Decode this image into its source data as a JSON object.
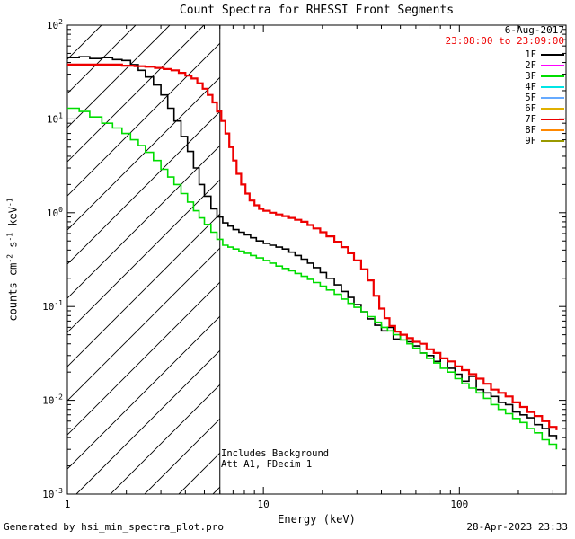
{
  "window": {
    "background": "#ffffff"
  },
  "footer": {
    "left": "Generated by hsi_min_spectra_plot.pro",
    "right": "28-Apr-2023 23:33"
  },
  "chart_data": {
    "type": "line",
    "scale": "log-log",
    "title": "Count Spectra for RHESSI Front Segments",
    "xlabel": "Energy (keV)",
    "ylabel_parts": [
      {
        "text": "counts cm",
        "sup": false
      },
      {
        "text": "-2",
        "sup": true
      },
      {
        "text": " s",
        "sup": false
      },
      {
        "text": "-1",
        "sup": true
      },
      {
        "text": " keV",
        "sup": false
      },
      {
        "text": "-1",
        "sup": true
      }
    ],
    "xlim": [
      1,
      350
    ],
    "ylim": [
      0.001,
      100
    ],
    "x_major_ticks": [
      1,
      10,
      100
    ],
    "x_tick_labels": [
      "1",
      "10",
      "100"
    ],
    "y_tick_exponents": [
      -3,
      -2,
      -1,
      0,
      1,
      2
    ],
    "grid": false,
    "legend_position": "top-right-inside",
    "vertical_line_x": 6,
    "hatch_region": {
      "x_min": 1,
      "x_max": 6
    },
    "header_lines": [
      {
        "text": "6-Aug-2017",
        "color": "#000000"
      },
      {
        "text": "23:08:00 to 23:09:00",
        "color": "#ee0000"
      }
    ],
    "annotations": [
      "Includes Background",
      "Att A1, FDecim 1"
    ],
    "legend": [
      {
        "label": "1F",
        "color": "#000000"
      },
      {
        "label": "2F",
        "color": "#ff00ff"
      },
      {
        "label": "3F",
        "color": "#00dd00"
      },
      {
        "label": "4F",
        "color": "#00e5e5"
      },
      {
        "label": "5F",
        "color": "#66aaff"
      },
      {
        "label": "6F",
        "color": "#e0b000"
      },
      {
        "label": "7F",
        "color": "#ee0000"
      },
      {
        "label": "8F",
        "color": "#ff8800"
      },
      {
        "label": "9F",
        "color": "#999900"
      }
    ],
    "series": [
      {
        "name": "1F",
        "color": "#000000",
        "line_width": 1.6,
        "points": [
          [
            1.0,
            45
          ],
          [
            1.15,
            46
          ],
          [
            1.3,
            44
          ],
          [
            1.5,
            45
          ],
          [
            1.7,
            43
          ],
          [
            1.9,
            42
          ],
          [
            2.1,
            38
          ],
          [
            2.3,
            33
          ],
          [
            2.5,
            28
          ],
          [
            2.75,
            23
          ],
          [
            3.0,
            18
          ],
          [
            3.25,
            13
          ],
          [
            3.5,
            9.5
          ],
          [
            3.8,
            6.5
          ],
          [
            4.1,
            4.5
          ],
          [
            4.4,
            3.0
          ],
          [
            4.7,
            2.0
          ],
          [
            5.0,
            1.5
          ],
          [
            5.4,
            1.1
          ],
          [
            5.8,
            0.9
          ],
          [
            6.2,
            0.78
          ],
          [
            6.6,
            0.72
          ],
          [
            7.0,
            0.66
          ],
          [
            7.5,
            0.62
          ],
          [
            8.0,
            0.58
          ],
          [
            8.6,
            0.54
          ],
          [
            9.2,
            0.5
          ],
          [
            10,
            0.47
          ],
          [
            10.8,
            0.45
          ],
          [
            11.6,
            0.43
          ],
          [
            12.5,
            0.41
          ],
          [
            13.5,
            0.38
          ],
          [
            14.5,
            0.35
          ],
          [
            15.6,
            0.32
          ],
          [
            16.8,
            0.29
          ],
          [
            18,
            0.26
          ],
          [
            19.5,
            0.23
          ],
          [
            21,
            0.2
          ],
          [
            23,
            0.17
          ],
          [
            25,
            0.145
          ],
          [
            27,
            0.125
          ],
          [
            29,
            0.105
          ],
          [
            31.5,
            0.088
          ],
          [
            34,
            0.074
          ],
          [
            37,
            0.063
          ],
          [
            40,
            0.055
          ],
          [
            43,
            0.06
          ],
          [
            46,
            0.045
          ],
          [
            50,
            0.05
          ],
          [
            54,
            0.042
          ],
          [
            58,
            0.038
          ],
          [
            63,
            0.032
          ],
          [
            68,
            0.03
          ],
          [
            74,
            0.026
          ],
          [
            80,
            0.028
          ],
          [
            87,
            0.022
          ],
          [
            95,
            0.019
          ],
          [
            103,
            0.016
          ],
          [
            112,
            0.018
          ],
          [
            122,
            0.013
          ],
          [
            133,
            0.012
          ],
          [
            145,
            0.011
          ],
          [
            158,
            0.0095
          ],
          [
            172,
            0.009
          ],
          [
            187,
            0.0075
          ],
          [
            204,
            0.007
          ],
          [
            222,
            0.0065
          ],
          [
            242,
            0.0055
          ],
          [
            264,
            0.005
          ],
          [
            287,
            0.0042
          ],
          [
            313,
            0.0038
          ]
        ]
      },
      {
        "name": "3F",
        "color": "#00dd00",
        "line_width": 1.6,
        "points": [
          [
            1.0,
            13
          ],
          [
            1.15,
            12
          ],
          [
            1.3,
            10.5
          ],
          [
            1.5,
            9
          ],
          [
            1.7,
            8
          ],
          [
            1.9,
            7
          ],
          [
            2.1,
            6
          ],
          [
            2.3,
            5.2
          ],
          [
            2.5,
            4.4
          ],
          [
            2.75,
            3.6
          ],
          [
            3.0,
            2.9
          ],
          [
            3.25,
            2.4
          ],
          [
            3.5,
            2.0
          ],
          [
            3.8,
            1.6
          ],
          [
            4.1,
            1.3
          ],
          [
            4.4,
            1.05
          ],
          [
            4.7,
            0.88
          ],
          [
            5.0,
            0.75
          ],
          [
            5.4,
            0.62
          ],
          [
            5.8,
            0.52
          ],
          [
            6.2,
            0.45
          ],
          [
            6.6,
            0.43
          ],
          [
            7.0,
            0.41
          ],
          [
            7.5,
            0.39
          ],
          [
            8.0,
            0.37
          ],
          [
            8.6,
            0.35
          ],
          [
            9.2,
            0.33
          ],
          [
            10,
            0.31
          ],
          [
            10.8,
            0.29
          ],
          [
            11.6,
            0.27
          ],
          [
            12.5,
            0.255
          ],
          [
            13.5,
            0.24
          ],
          [
            14.5,
            0.225
          ],
          [
            15.6,
            0.21
          ],
          [
            16.8,
            0.195
          ],
          [
            18,
            0.18
          ],
          [
            19.5,
            0.165
          ],
          [
            21,
            0.15
          ],
          [
            23,
            0.135
          ],
          [
            25,
            0.12
          ],
          [
            27,
            0.108
          ],
          [
            29,
            0.098
          ],
          [
            31.5,
            0.088
          ],
          [
            34,
            0.078
          ],
          [
            37,
            0.068
          ],
          [
            40,
            0.06
          ],
          [
            43,
            0.055
          ],
          [
            46,
            0.05
          ],
          [
            50,
            0.044
          ],
          [
            54,
            0.04
          ],
          [
            58,
            0.036
          ],
          [
            63,
            0.032
          ],
          [
            68,
            0.028
          ],
          [
            74,
            0.025
          ],
          [
            80,
            0.022
          ],
          [
            87,
            0.02
          ],
          [
            95,
            0.017
          ],
          [
            103,
            0.015
          ],
          [
            112,
            0.0135
          ],
          [
            122,
            0.012
          ],
          [
            133,
            0.0105
          ],
          [
            145,
            0.009
          ],
          [
            158,
            0.008
          ],
          [
            172,
            0.0072
          ],
          [
            187,
            0.0064
          ],
          [
            204,
            0.0058
          ],
          [
            222,
            0.005
          ],
          [
            242,
            0.0045
          ],
          [
            264,
            0.0038
          ],
          [
            287,
            0.0034
          ],
          [
            313,
            0.003
          ]
        ]
      },
      {
        "name": "7F",
        "color": "#ee0000",
        "line_width": 2.2,
        "points": [
          [
            1.0,
            38
          ],
          [
            1.3,
            38
          ],
          [
            1.6,
            38
          ],
          [
            1.9,
            37
          ],
          [
            2.2,
            36.5
          ],
          [
            2.5,
            36
          ],
          [
            2.8,
            35
          ],
          [
            3.1,
            34
          ],
          [
            3.4,
            33
          ],
          [
            3.7,
            31
          ],
          [
            4.0,
            29
          ],
          [
            4.3,
            27
          ],
          [
            4.6,
            24
          ],
          [
            4.9,
            21
          ],
          [
            5.2,
            18
          ],
          [
            5.5,
            15
          ],
          [
            5.8,
            12
          ],
          [
            6.1,
            9.5
          ],
          [
            6.4,
            7
          ],
          [
            6.7,
            5
          ],
          [
            7.0,
            3.6
          ],
          [
            7.3,
            2.6
          ],
          [
            7.7,
            2.0
          ],
          [
            8.1,
            1.6
          ],
          [
            8.5,
            1.35
          ],
          [
            9.0,
            1.2
          ],
          [
            9.5,
            1.1
          ],
          [
            10,
            1.05
          ],
          [
            10.8,
            1.0
          ],
          [
            11.6,
            0.96
          ],
          [
            12.5,
            0.92
          ],
          [
            13.5,
            0.88
          ],
          [
            14.5,
            0.84
          ],
          [
            15.6,
            0.8
          ],
          [
            16.8,
            0.74
          ],
          [
            18,
            0.68
          ],
          [
            19.5,
            0.62
          ],
          [
            21,
            0.56
          ],
          [
            23,
            0.49
          ],
          [
            25,
            0.43
          ],
          [
            27,
            0.37
          ],
          [
            29,
            0.31
          ],
          [
            31.5,
            0.25
          ],
          [
            34,
            0.19
          ],
          [
            36.5,
            0.13
          ],
          [
            39,
            0.095
          ],
          [
            41.5,
            0.075
          ],
          [
            44,
            0.062
          ],
          [
            47,
            0.054
          ],
          [
            50,
            0.05
          ],
          [
            54,
            0.046
          ],
          [
            58,
            0.042
          ],
          [
            63,
            0.04
          ],
          [
            68,
            0.035
          ],
          [
            74,
            0.032
          ],
          [
            80,
            0.028
          ],
          [
            87,
            0.026
          ],
          [
            95,
            0.023
          ],
          [
            103,
            0.021
          ],
          [
            112,
            0.019
          ],
          [
            122,
            0.017
          ],
          [
            133,
            0.015
          ],
          [
            145,
            0.013
          ],
          [
            158,
            0.012
          ],
          [
            172,
            0.011
          ],
          [
            187,
            0.0095
          ],
          [
            204,
            0.0085
          ],
          [
            222,
            0.0075
          ],
          [
            242,
            0.0068
          ],
          [
            264,
            0.006
          ],
          [
            287,
            0.0052
          ],
          [
            313,
            0.0048
          ]
        ]
      }
    ]
  }
}
